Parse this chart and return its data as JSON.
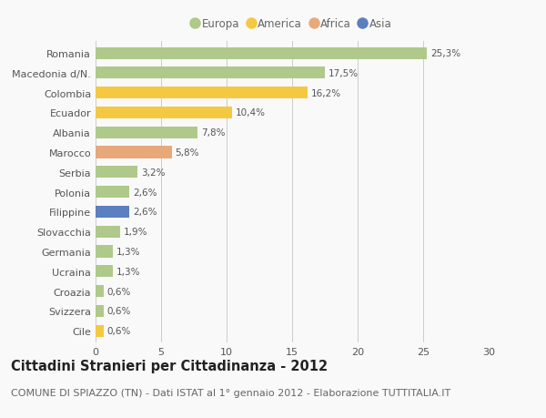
{
  "categories": [
    "Romania",
    "Macedonia d/N.",
    "Colombia",
    "Ecuador",
    "Albania",
    "Marocco",
    "Serbia",
    "Polonia",
    "Filippine",
    "Slovacchia",
    "Germania",
    "Ucraina",
    "Croazia",
    "Svizzera",
    "Cile"
  ],
  "values": [
    25.3,
    17.5,
    16.2,
    10.4,
    7.8,
    5.8,
    3.2,
    2.6,
    2.6,
    1.9,
    1.3,
    1.3,
    0.6,
    0.6,
    0.6
  ],
  "labels": [
    "25,3%",
    "17,5%",
    "16,2%",
    "10,4%",
    "7,8%",
    "5,8%",
    "3,2%",
    "2,6%",
    "2,6%",
    "1,9%",
    "1,3%",
    "1,3%",
    "0,6%",
    "0,6%",
    "0,6%"
  ],
  "continents": [
    "Europa",
    "Europa",
    "America",
    "America",
    "Europa",
    "Africa",
    "Europa",
    "Europa",
    "Asia",
    "Europa",
    "Europa",
    "Europa",
    "Europa",
    "Europa",
    "America"
  ],
  "colors": {
    "Europa": "#aec98a",
    "America": "#f5c842",
    "Africa": "#e8a97a",
    "Asia": "#5b7fbf"
  },
  "legend_order": [
    "Europa",
    "America",
    "Africa",
    "Asia"
  ],
  "xlim": [
    0,
    30
  ],
  "xticks": [
    0,
    5,
    10,
    15,
    20,
    25,
    30
  ],
  "title": "Cittadini Stranieri per Cittadinanza - 2012",
  "subtitle": "COMUNE DI SPIAZZO (TN) - Dati ISTAT al 1° gennaio 2012 - Elaborazione TUTTITALIA.IT",
  "background_color": "#f9f9f9",
  "grid_color": "#cccccc",
  "bar_height": 0.6,
  "title_fontsize": 10.5,
  "subtitle_fontsize": 8,
  "label_fontsize": 7.5,
  "tick_fontsize": 8,
  "legend_fontsize": 8.5
}
